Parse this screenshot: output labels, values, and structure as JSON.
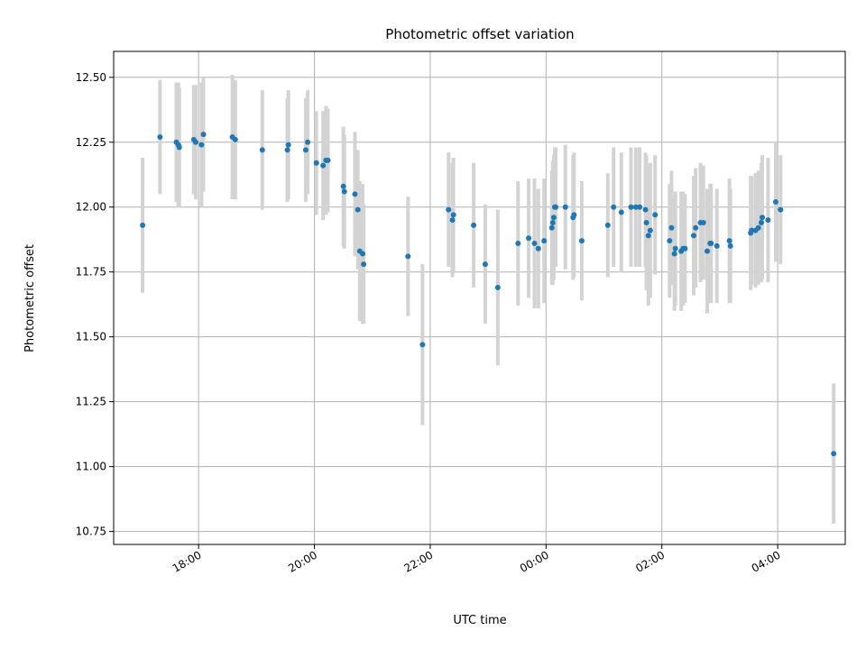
{
  "chart_data": {
    "type": "scatter",
    "title": "Photometric offset variation",
    "xlabel": "UTC time",
    "ylabel": "Photometric offset",
    "grid": true,
    "x_unit": "UTC time",
    "xlim": [
      "16:32",
      "05:10+1d"
    ],
    "ylim": [
      10.7,
      12.6
    ],
    "x_ticks": [
      "18:00",
      "20:00",
      "22:00",
      "00:00",
      "02:00",
      "04:00"
    ],
    "y_ticks": [
      "10.75",
      "11.00",
      "11.25",
      "11.50",
      "11.75",
      "12.00",
      "12.25",
      "12.50"
    ],
    "colors": {
      "marker": "#1f77b4",
      "errorbar": "#d3d3d3",
      "grid": "#b0b0b0"
    },
    "series": [
      {
        "x": [
          "17:02",
          "17:20",
          "17:37",
          "17:39",
          "17:40",
          "17:55",
          "17:57",
          "18:03",
          "18:05",
          "18:35",
          "18:38",
          "19:06",
          "19:32",
          "19:33",
          "19:51",
          "19:53",
          "20:02",
          "20:09",
          "20:12",
          "20:14",
          "20:30",
          "20:31",
          "20:42",
          "20:45",
          "20:47",
          "20:50",
          "20:51",
          "21:37",
          "21:52",
          "22:19",
          "22:23",
          "22:24",
          "22:45",
          "22:57",
          "23:10",
          "23:31",
          "23:42",
          "23:48",
          "23:52",
          "23:58",
          "00:06",
          "00:07",
          "00:08",
          "00:09",
          "00:10",
          "00:20",
          "00:28",
          "00:29",
          "00:37",
          "01:04",
          "01:10",
          "01:18",
          "01:28",
          "01:33",
          "01:37",
          "01:43",
          "01:44",
          "01:46",
          "01:48",
          "01:53",
          "02:08",
          "02:10",
          "02:13",
          "02:14",
          "02:20",
          "02:22",
          "02:24",
          "02:33",
          "02:35",
          "02:40",
          "02:43",
          "02:47",
          "02:50",
          "02:51",
          "02:57",
          "03:10",
          "03:11",
          "03:32",
          "03:33",
          "03:37",
          "03:40",
          "03:43",
          "03:44",
          "03:50",
          "03:58",
          "04:03",
          "04:58"
        ],
        "y": [
          11.93,
          12.27,
          12.25,
          12.24,
          12.23,
          12.26,
          12.25,
          12.24,
          12.28,
          12.27,
          12.26,
          12.22,
          12.22,
          12.24,
          12.22,
          12.25,
          12.17,
          12.16,
          12.18,
          12.18,
          12.08,
          12.06,
          12.05,
          11.99,
          11.83,
          11.82,
          11.78,
          11.81,
          11.47,
          11.99,
          11.95,
          11.97,
          11.93,
          11.78,
          11.69,
          11.86,
          11.88,
          11.86,
          11.84,
          11.87,
          11.92,
          11.94,
          11.96,
          12.0,
          12.0,
          12.0,
          11.96,
          11.97,
          11.87,
          11.93,
          12.0,
          11.98,
          12.0,
          12.0,
          12.0,
          11.99,
          11.94,
          11.89,
          11.91,
          11.97,
          11.87,
          11.92,
          11.82,
          11.84,
          11.83,
          11.84,
          11.84,
          11.89,
          11.92,
          11.94,
          11.94,
          11.83,
          11.86,
          11.86,
          11.85,
          11.87,
          11.85,
          11.9,
          11.91,
          11.91,
          11.92,
          11.94,
          11.96,
          11.95,
          12.02,
          11.99,
          11.05
        ],
        "err": [
          0.26,
          0.22,
          0.23,
          0.24,
          0.23,
          0.21,
          0.22,
          0.24,
          0.22,
          0.24,
          0.23,
          0.23,
          0.2,
          0.21,
          0.2,
          0.2,
          0.2,
          0.21,
          0.21,
          0.2,
          0.23,
          0.22,
          0.24,
          0.23,
          0.27,
          0.27,
          0.23,
          0.23,
          0.31,
          0.22,
          0.22,
          0.22,
          0.24,
          0.23,
          0.3,
          0.24,
          0.23,
          0.25,
          0.23,
          0.24,
          0.22,
          0.24,
          0.24,
          0.23,
          0.23,
          0.24,
          0.24,
          0.24,
          0.23,
          0.2,
          0.23,
          0.23,
          0.23,
          0.23,
          0.23,
          0.22,
          0.26,
          0.27,
          0.26,
          0.23,
          0.22,
          0.22,
          0.22,
          0.22,
          0.23,
          0.22,
          0.21,
          0.23,
          0.23,
          0.23,
          0.22,
          0.24,
          0.23,
          0.23,
          0.22,
          0.24,
          0.22,
          0.22,
          0.21,
          0.22,
          0.22,
          0.23,
          0.24,
          0.24,
          0.23,
          0.21,
          0.27
        ]
      }
    ]
  }
}
